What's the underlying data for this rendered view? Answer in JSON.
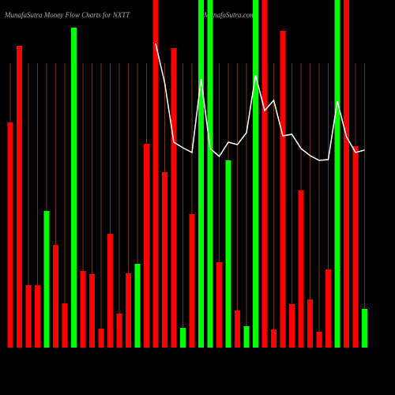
{
  "chart_data": {
    "type": "bar",
    "title": "MunafaSutra  Money Flow  Charts for NXTT",
    "watermark": "MunafaSutra.com",
    "values": [
      285,
      382,
      79,
      79,
      173,
      130,
      56,
      405,
      97,
      93,
      24,
      144,
      43,
      94,
      106,
      258,
      440,
      222,
      379,
      25,
      169,
      440,
      440,
      108,
      237,
      47,
      27,
      440,
      440,
      23,
      401,
      55,
      199,
      61,
      20,
      99,
      440,
      440,
      255,
      49
    ],
    "colors": [
      "#ff0000",
      "#ff0000",
      "#ff0000",
      "#ff0000",
      "#00ff00",
      "#ff0000",
      "#ff0000",
      "#00ff00",
      "#ff0000",
      "#ff0000",
      "#ff0000",
      "#ff0000",
      "#ff0000",
      "#ff0000",
      "#00ff00",
      "#ff0000",
      "#ff0000",
      "#ff0000",
      "#ff0000",
      "#00ff00",
      "#ff0000",
      "#00ff00",
      "#00ff00",
      "#ff0000",
      "#00ff00",
      "#ff0000",
      "#00ff00",
      "#00ff00",
      "#ff0000",
      "#ff0000",
      "#ff0000",
      "#ff0000",
      "#ff0000",
      "#ff0000",
      "#ff0000",
      "#ff0000",
      "#00ff00",
      "#ff0000",
      "#ff0000",
      "#00ff00"
    ],
    "line_values": [
      null,
      null,
      null,
      null,
      null,
      null,
      null,
      null,
      null,
      null,
      null,
      null,
      null,
      null,
      null,
      null,
      385,
      335,
      260,
      253,
      247,
      340,
      252,
      242,
      260,
      257,
      272,
      345,
      300,
      313,
      268,
      270,
      252,
      243,
      237,
      238,
      312,
      267,
      247,
      250
    ],
    "line_color": "#ffffff",
    "grid_color": "#8b4513",
    "ylim": [
      0,
      440
    ]
  }
}
